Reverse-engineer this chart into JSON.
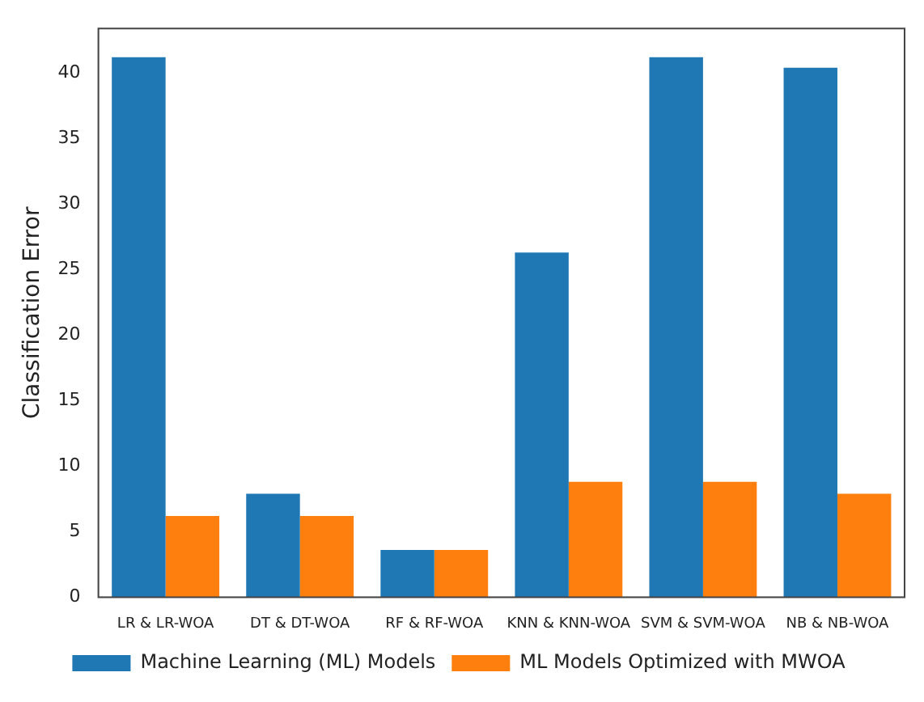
{
  "chart_data": {
    "type": "bar",
    "ylabel": "Classification Error",
    "categories": [
      "LR & LR-WOA",
      "DT & DT-WOA",
      "RF & RF-WOA",
      "KNN & KNN-WOA",
      "SVM & SVM-WOA",
      "NB & NB-WOA"
    ],
    "series": [
      {
        "name": "Machine Learning (ML) Models",
        "color": "#1f77b4",
        "values": [
          41.2,
          7.9,
          3.6,
          26.3,
          41.2,
          40.4
        ]
      },
      {
        "name": "ML Models Optimized with MWOA",
        "color": "#ff7f0e",
        "values": [
          6.2,
          6.2,
          3.6,
          8.8,
          8.8,
          7.9
        ]
      }
    ],
    "ylim": [
      0,
      43.4
    ],
    "yticks": [
      0,
      5,
      10,
      15,
      20,
      25,
      30,
      35,
      40
    ],
    "grid": false,
    "legend": "bottom"
  }
}
